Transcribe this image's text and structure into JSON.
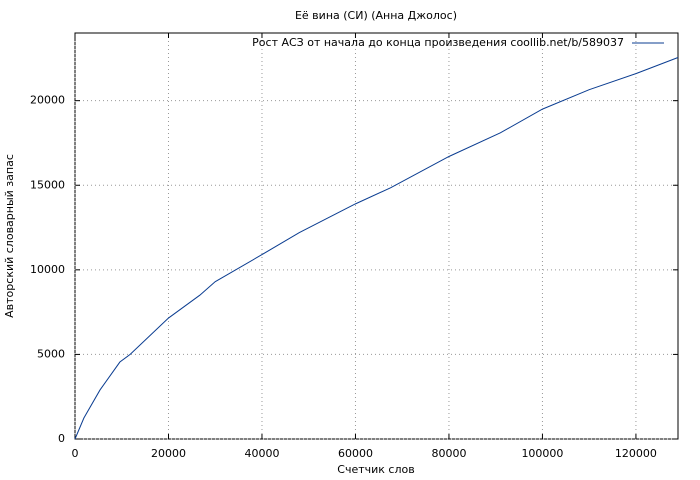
{
  "chart_data": {
    "type": "line",
    "title": "Её вина (СИ) (Анна Джолос)",
    "x_label": "Счетчик слов",
    "y_label": "Авторский словарный запас",
    "x": [
      0,
      1900,
      5350,
      9600,
      11800,
      20000,
      26700,
      30000,
      40000,
      48000,
      60000,
      67500,
      80000,
      91000,
      100000,
      110000,
      120000,
      129000
    ],
    "series": [
      {
        "name": "Рост АСЗ от начала до конца произведения coollib.net/b/589037",
        "color": "#0b3d91",
        "values": [
          0,
          1240,
          2900,
          4550,
          5000,
          7150,
          8500,
          9300,
          10900,
          12200,
          13900,
          14850,
          16700,
          18100,
          19500,
          20650,
          21600,
          22550
        ]
      }
    ],
    "xlim": [
      0,
      129000
    ],
    "ylim": [
      0,
      24000
    ],
    "xticks": [
      0,
      20000,
      40000,
      60000,
      80000,
      100000,
      120000
    ],
    "yticks": [
      0,
      5000,
      10000,
      15000,
      20000
    ],
    "grid": true,
    "legend": "top-right"
  }
}
